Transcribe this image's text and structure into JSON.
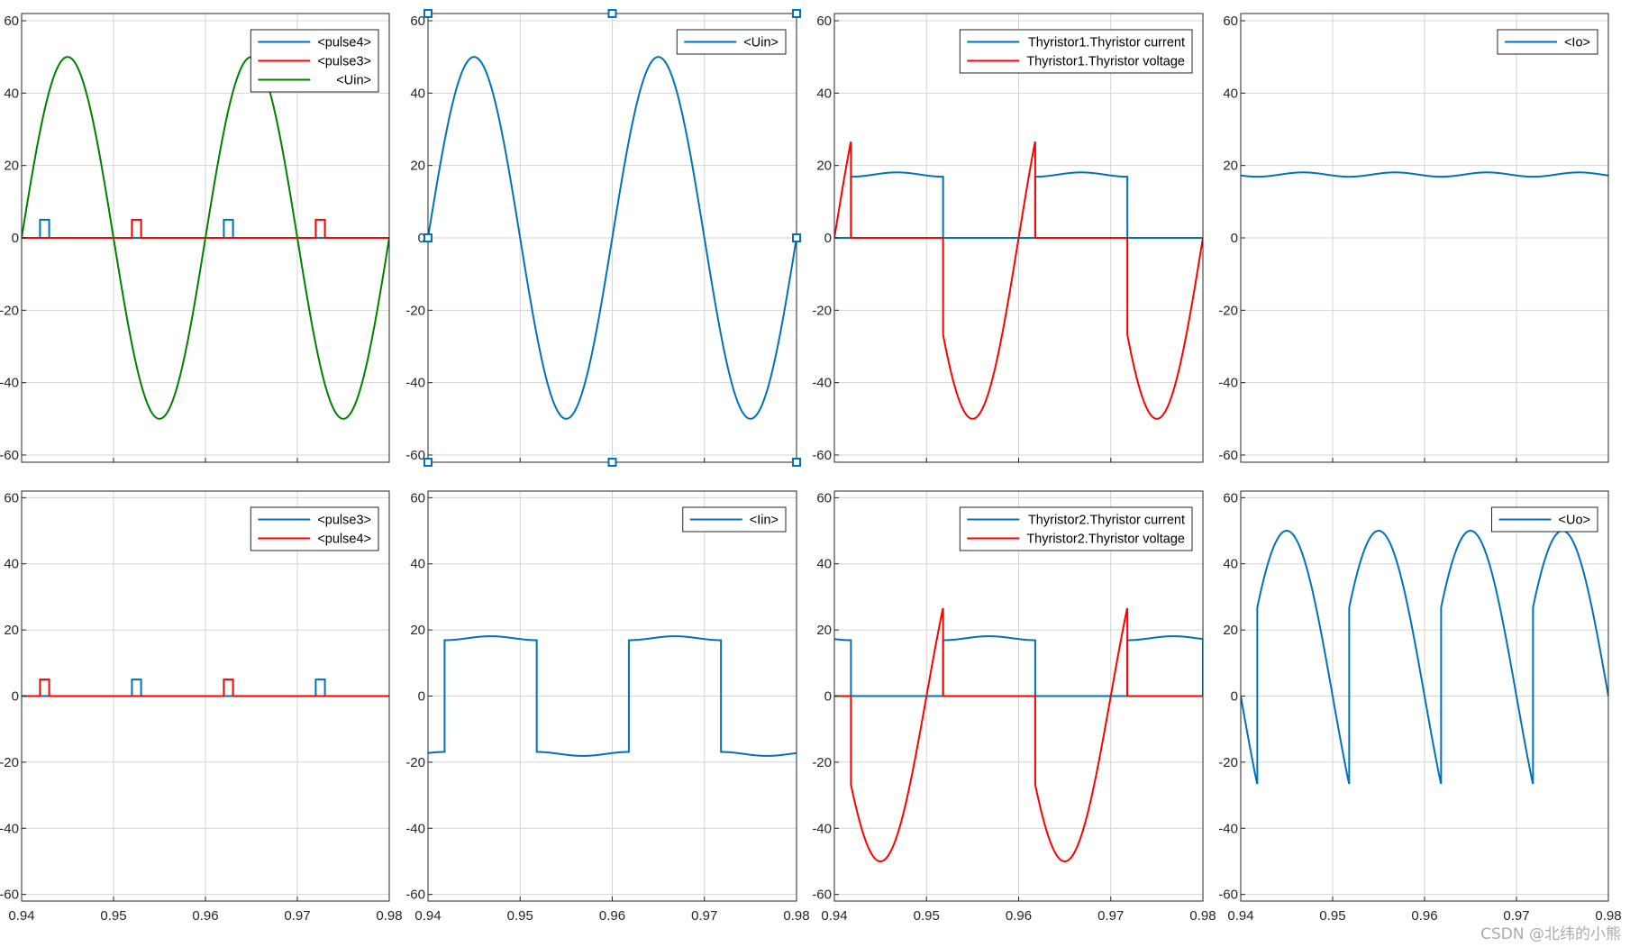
{
  "window": {
    "watermark": "CSDN @北纬的小熊"
  },
  "colors": {
    "blue": "#0072bd",
    "red": "#ff0000",
    "green": "#008000",
    "grid": "#d4d4d4",
    "axis": "#262626"
  },
  "chart_data": [
    {
      "type": "line",
      "xlim": [
        0.94,
        0.98
      ],
      "ylim": [
        -62,
        62
      ],
      "grid": true,
      "legend_position": "top-right",
      "yticks": [
        60,
        40,
        20,
        0,
        -20,
        -40,
        -60
      ],
      "xticks": [
        "",
        "",
        "",
        "",
        ""
      ],
      "series": [
        {
          "name": "<pulse4>",
          "color": "#0072bd",
          "pulses_at": [
            0.942,
            0.962
          ],
          "pulse_width": 0.001,
          "pulse_height": 5
        },
        {
          "name": "<pulse3>",
          "color": "#ff0000",
          "pulses_at": [
            0.952,
            0.972
          ],
          "pulse_width": 0.001,
          "pulse_height": 5,
          "baseline": true
        },
        {
          "name": "<Uin>",
          "color": "#008000",
          "waveform": "sine",
          "amplitude": 50,
          "frequency_hz": 50
        }
      ]
    },
    {
      "type": "line",
      "xlim": [
        0.94,
        0.98
      ],
      "ylim": [
        -62,
        62
      ],
      "grid": true,
      "legend_position": "top-right",
      "selected": true,
      "yticks": [
        60,
        40,
        20,
        0,
        -20,
        -40,
        -60
      ],
      "xticks": [
        "",
        "",
        "",
        "",
        ""
      ],
      "series": [
        {
          "name": "<Uin>",
          "color": "#0072bd",
          "waveform": "sine",
          "amplitude": 50,
          "frequency_hz": 50
        }
      ]
    },
    {
      "type": "line",
      "xlim": [
        0.94,
        0.98
      ],
      "ylim": [
        -62,
        62
      ],
      "grid": true,
      "legend_position": "top-right",
      "yticks": [
        60,
        40,
        20,
        0,
        -20,
        -40,
        -60
      ],
      "xticks": [
        "",
        "",
        "",
        "",
        ""
      ],
      "series": [
        {
          "name": "Thyristor1.Thyristor current",
          "color": "#0072bd",
          "waveform": "thyristor_current",
          "on_intervals": [
            [
              0.9418,
              0.9518
            ],
            [
              0.9618,
              0.9718
            ]
          ],
          "current_level": 17.5
        },
        {
          "name": "Thyristor1.Thyristor voltage",
          "color": "#ff0000",
          "waveform": "thyristor_voltage",
          "on_intervals": [
            [
              0.9418,
              0.9518
            ],
            [
              0.9618,
              0.9718
            ]
          ],
          "amplitude": 50
        }
      ]
    },
    {
      "type": "line",
      "xlim": [
        0.94,
        0.98
      ],
      "ylim": [
        -62,
        62
      ],
      "grid": true,
      "legend_position": "top-right",
      "yticks": [
        60,
        40,
        20,
        0,
        -20,
        -40,
        -60
      ],
      "xticks": [
        "",
        "",
        "",
        "",
        ""
      ],
      "series": [
        {
          "name": "<Io>",
          "color": "#0072bd",
          "waveform": "ripple",
          "mean": 17.5,
          "ripple": 0.6,
          "frequency_hz": 100
        }
      ]
    },
    {
      "type": "line",
      "xlim": [
        0.94,
        0.98
      ],
      "ylim": [
        -62,
        62
      ],
      "grid": true,
      "legend_position": "top-right",
      "yticks": [
        60,
        40,
        20,
        0,
        -20,
        -40,
        -60
      ],
      "xticks": [
        "0.94",
        "0.95",
        "0.96",
        "0.97",
        "0.98"
      ],
      "series": [
        {
          "name": "<pulse3>",
          "color": "#0072bd",
          "pulses_at": [
            0.952,
            0.972
          ],
          "pulse_width": 0.001,
          "pulse_height": 5
        },
        {
          "name": "<pulse4>",
          "color": "#ff0000",
          "pulses_at": [
            0.942,
            0.962
          ],
          "pulse_width": 0.001,
          "pulse_height": 5,
          "baseline": true
        }
      ]
    },
    {
      "type": "line",
      "xlim": [
        0.94,
        0.98
      ],
      "ylim": [
        -62,
        62
      ],
      "grid": true,
      "legend_position": "top-right",
      "yticks": [
        60,
        40,
        20,
        0,
        -20,
        -40,
        -60
      ],
      "xticks": [
        "0.94",
        "0.95",
        "0.96",
        "0.97",
        "0.98"
      ],
      "series": [
        {
          "name": "<Iin>",
          "color": "#0072bd",
          "waveform": "input_current",
          "switch_times": [
            0.9418,
            0.9518,
            0.9618,
            0.9718
          ],
          "current_level": 17.5
        }
      ]
    },
    {
      "type": "line",
      "xlim": [
        0.94,
        0.98
      ],
      "ylim": [
        -62,
        62
      ],
      "grid": true,
      "legend_position": "top-right",
      "yticks": [
        60,
        40,
        20,
        0,
        -20,
        -40,
        -60
      ],
      "xticks": [
        "0.94",
        "0.95",
        "0.96",
        "0.97",
        "0.98"
      ],
      "series": [
        {
          "name": "Thyristor2.Thyristor current",
          "color": "#0072bd",
          "waveform": "thyristor_current",
          "on_intervals": [
            [
              0.94,
              0.9418
            ],
            [
              0.9518,
              0.9618
            ],
            [
              0.9718,
              0.98
            ]
          ],
          "current_level": 17.5
        },
        {
          "name": "Thyristor2.Thyristor voltage",
          "color": "#ff0000",
          "waveform": "thyristor_voltage_neg",
          "on_intervals": [
            [
              0.94,
              0.9418
            ],
            [
              0.9518,
              0.9618
            ],
            [
              0.9718,
              0.98
            ]
          ],
          "amplitude": 50
        }
      ]
    },
    {
      "type": "line",
      "xlim": [
        0.94,
        0.98
      ],
      "ylim": [
        -62,
        62
      ],
      "grid": true,
      "legend_position": "top-right",
      "yticks": [
        60,
        40,
        20,
        0,
        -20,
        -40,
        -60
      ],
      "xticks": [
        "0.94",
        "0.95",
        "0.96",
        "0.97",
        "0.98"
      ],
      "series": [
        {
          "name": "<Uo>",
          "color": "#0072bd",
          "waveform": "output_voltage",
          "switch_times": [
            0.9418,
            0.9518,
            0.9618,
            0.9718
          ],
          "amplitude": 50
        }
      ]
    }
  ]
}
